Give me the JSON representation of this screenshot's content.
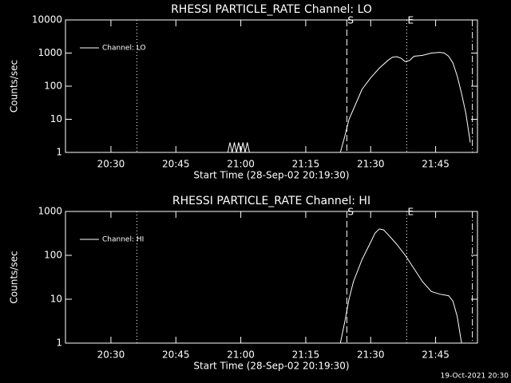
{
  "chart_data": [
    {
      "type": "line",
      "title": "RHESSI PARTICLE_RATE Channel: LO",
      "xlabel": "Start Time (28-Sep-02 20:19:30)",
      "ylabel": "Counts/sec",
      "log_y": true,
      "xlim": [
        "20:19:30",
        "21:54:40"
      ],
      "xticks": [
        "20:30",
        "20:45",
        "21:00",
        "21:15",
        "21:30",
        "21:45"
      ],
      "ylim": [
        1,
        10000
      ],
      "yticks": [
        10000,
        1000,
        100,
        10,
        1
      ],
      "legend": "upper left",
      "markers": [
        {
          "x": "20:36:00",
          "style": "dotted"
        },
        {
          "x": "21:24:30",
          "label": "S",
          "style": "dashed"
        },
        {
          "x": "21:38:20",
          "label": "E",
          "style": "dotted"
        },
        {
          "x": "21:53:30",
          "style": "dashdot"
        }
      ],
      "series": [
        {
          "name": "Channel: LO",
          "color": "#ffffff",
          "x": [
            "20:57:00",
            "20:57:30",
            "20:58:00",
            "20:58:30",
            "20:59:00",
            "20:59:30",
            "21:00:00",
            "21:00:30",
            "21:01:00",
            "21:01:30",
            "21:02:00",
            "21:23:00",
            "21:23:00",
            "21:24:00",
            "21:25:00",
            "21:26:00",
            "21:27:00",
            "21:28:00",
            "21:30:00",
            "21:32:00",
            "21:34:00",
            "21:35:00",
            "21:36:00",
            "21:37:00",
            "21:38:00",
            "21:39:00",
            "21:40:00",
            "21:42:00",
            "21:44:00",
            "21:46:00",
            "21:47:00",
            "21:48:00",
            "21:49:00",
            "21:50:00",
            "21:51:00",
            "21:52:00",
            "21:53:00"
          ],
          "values": [
            1,
            2,
            1,
            2,
            1,
            2,
            1,
            2,
            1,
            2,
            1,
            null,
            1,
            3,
            10,
            20,
            40,
            80,
            180,
            350,
            600,
            750,
            780,
            700,
            550,
            600,
            800,
            850,
            1000,
            1050,
            1000,
            800,
            500,
            200,
            60,
            15,
            2
          ]
        }
      ]
    },
    {
      "type": "line",
      "title": "RHESSI PARTICLE_RATE Channel: HI",
      "xlabel": "Start Time (28-Sep-02 20:19:30)",
      "ylabel": "Counts/sec",
      "log_y": true,
      "xlim": [
        "20:19:30",
        "21:54:40"
      ],
      "xticks": [
        "20:30",
        "20:45",
        "21:00",
        "21:15",
        "21:30",
        "21:45"
      ],
      "ylim": [
        1,
        1000
      ],
      "yticks": [
        1000,
        100,
        10,
        1
      ],
      "legend": "upper left",
      "markers": [
        {
          "x": "20:36:00",
          "style": "dotted"
        },
        {
          "x": "21:24:30",
          "label": "S",
          "style": "dashed"
        },
        {
          "x": "21:38:20",
          "label": "E",
          "style": "dotted"
        },
        {
          "x": "21:53:30",
          "style": "dashdot"
        }
      ],
      "series": [
        {
          "name": "Channel: HI",
          "color": "#ffffff",
          "x": [
            "21:23:00",
            "21:24:00",
            "21:25:00",
            "21:26:00",
            "21:28:00",
            "21:30:00",
            "21:31:00",
            "21:32:00",
            "21:33:00",
            "21:34:00",
            "21:36:00",
            "21:38:00",
            "21:40:00",
            "21:42:00",
            "21:44:00",
            "21:46:00",
            "21:48:00",
            "21:49:00",
            "21:50:00",
            "21:51:00"
          ],
          "values": [
            1,
            3,
            10,
            25,
            80,
            200,
            320,
            400,
            380,
            300,
            180,
            100,
            50,
            25,
            15,
            13,
            12,
            9,
            4,
            1
          ]
        }
      ]
    }
  ],
  "footer": "19-Oct-2021 20:30"
}
